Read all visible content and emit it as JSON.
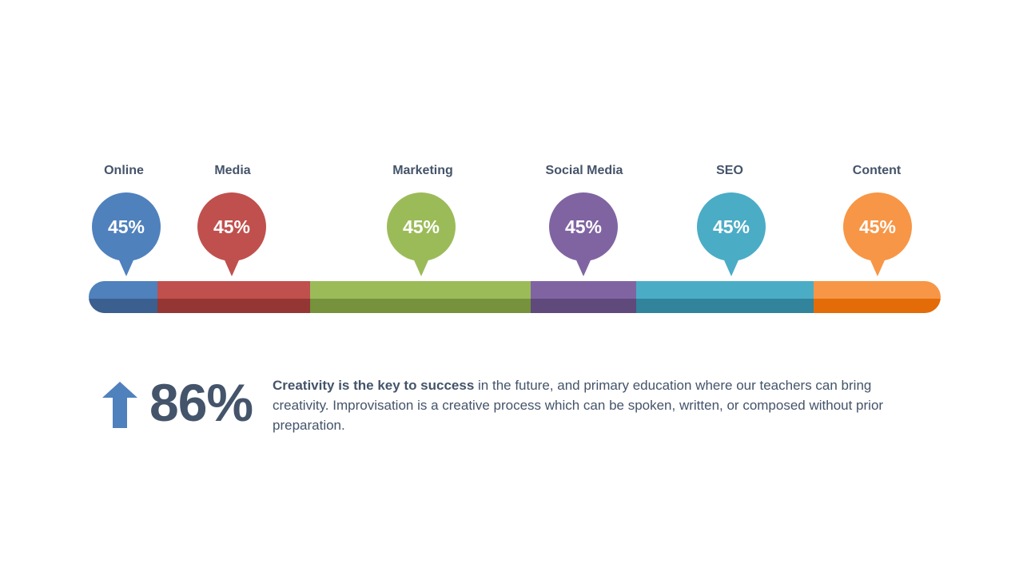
{
  "segments": [
    {
      "label": "Online",
      "value": "45%",
      "color": "#4f81bd",
      "dark": "#3b5f8e",
      "share": 86
    },
    {
      "label": "Media",
      "value": "45%",
      "color": "#c0504d",
      "dark": "#943634",
      "share": 191
    },
    {
      "label": "Marketing",
      "value": "45%",
      "color": "#9bbb59",
      "dark": "#76923c",
      "share": 276
    },
    {
      "label": "Social Media",
      "value": "45%",
      "color": "#8064a2",
      "dark": "#5f4a7b",
      "share": 132
    },
    {
      "label": "SEO",
      "value": "45%",
      "color": "#4bacc6",
      "dark": "#31849b",
      "share": 222
    },
    {
      "label": "Content",
      "value": "45%",
      "color": "#f79646",
      "dark": "#e36c09",
      "share": 159
    }
  ],
  "stat": {
    "value": "86%",
    "direction": "up",
    "arrow_color": "#4f81bd"
  },
  "description": {
    "bold": "Creativity is the key to success",
    "rest": " in the future, and primary education where our teachers can bring creativity. Improvisation is a creative process which can be spoken, written, or composed without prior preparation."
  }
}
